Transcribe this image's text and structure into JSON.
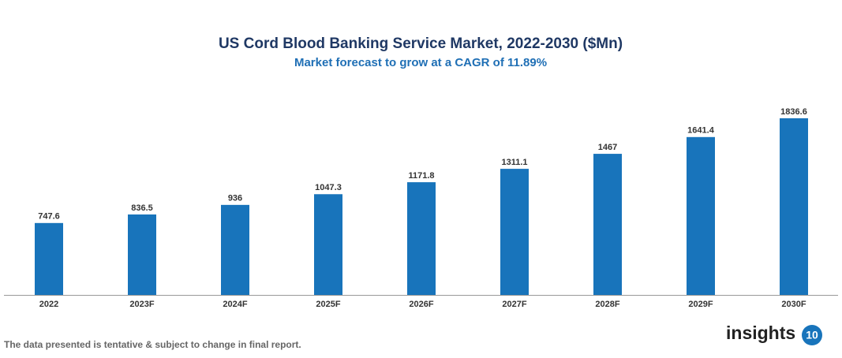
{
  "chart_data": {
    "type": "bar",
    "title": "US Cord Blood Banking Service Market, 2022-2030 ($Mn)",
    "subtitle": "Market forecast to grow at a CAGR of 11.89%",
    "categories": [
      "2022",
      "2023F",
      "2024F",
      "2025F",
      "2026F",
      "2027F",
      "2028F",
      "2029F",
      "2030F"
    ],
    "values": [
      747.6,
      836.5,
      936,
      1047.3,
      1171.8,
      1311.1,
      1467,
      1641.4,
      1836.6
    ],
    "color": "#1874bb"
  },
  "footer": {
    "note": "The data presented is tentative & subject to change in final report."
  },
  "logo": {
    "text": "insights",
    "badge": "10"
  }
}
